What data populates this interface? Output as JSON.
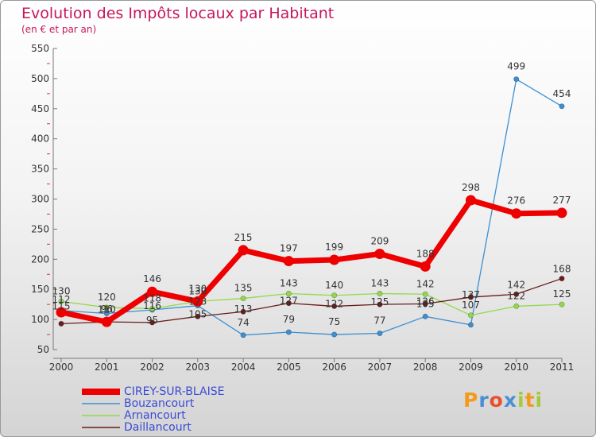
{
  "title": "Evolution des Impôts locaux par Habitant",
  "subtitle": "(en € et par an)",
  "logo": {
    "letters": [
      "P",
      "r",
      "o",
      "x",
      "i",
      "t",
      "i"
    ]
  },
  "chart_data": {
    "type": "line",
    "title": "Evolution des Impôts locaux par Habitant",
    "subtitle": "(en € et par an)",
    "xlabel": "",
    "ylabel": "",
    "categories": [
      "2000",
      "2001",
      "2002",
      "2003",
      "2004",
      "2005",
      "2006",
      "2007",
      "2008",
      "2009",
      "2010",
      "2011"
    ],
    "ylim": [
      50,
      550
    ],
    "yticks": [
      50,
      100,
      150,
      200,
      250,
      300,
      350,
      400,
      450,
      500,
      550
    ],
    "grid": false,
    "legend_position": "bottom-left",
    "series": [
      {
        "name": "CIREY-SUR-BLAISE",
        "color": "#ee0000",
        "values": [
          112,
          96,
          146,
          130,
          215,
          197,
          199,
          209,
          188,
          298,
          276,
          277
        ]
      },
      {
        "name": "Bouzancourt",
        "color": "#3d8fd1",
        "values": [
          115,
          110,
          116,
          123,
          74,
          79,
          75,
          77,
          105,
          91,
          499,
          454
        ]
      },
      {
        "name": "Arnancourt",
        "color": "#92d94a",
        "values": [
          130,
          120,
          118,
          130,
          135,
          143,
          140,
          143,
          142,
          107,
          122,
          125
        ]
      },
      {
        "name": "Daillancourt",
        "color": "#6b1c1c",
        "values": [
          93,
          96,
          95,
          105,
          113,
          127,
          122,
          125,
          126,
          137,
          142,
          168
        ]
      }
    ],
    "data_labels": [
      {
        "series": 0,
        "values": [
          112,
          96,
          146,
          130,
          215,
          197,
          199,
          209,
          188,
          298,
          276,
          277
        ]
      },
      {
        "series": 1,
        "values": [
          115,
          110,
          116,
          123,
          74,
          79,
          75,
          77,
          105,
          null,
          499,
          454
        ]
      },
      {
        "series": 2,
        "values": [
          130,
          120,
          118,
          130,
          135,
          143,
          140,
          143,
          142,
          107,
          122,
          125
        ]
      },
      {
        "series": 3,
        "values": [
          null,
          null,
          95,
          105,
          113,
          127,
          122,
          125,
          126,
          137,
          142,
          168
        ]
      }
    ]
  }
}
